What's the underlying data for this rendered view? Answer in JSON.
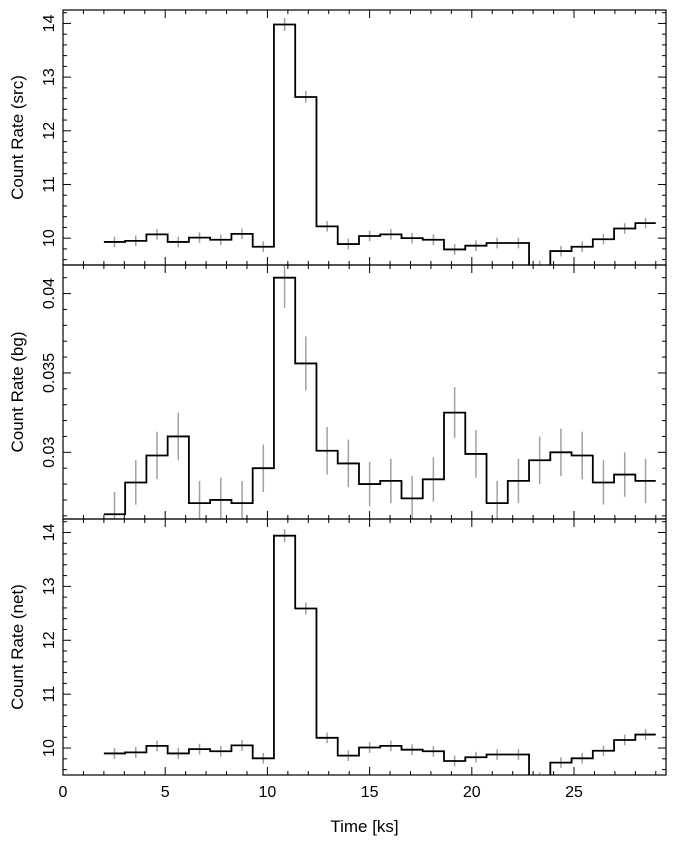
{
  "chart_data": {
    "type": "line",
    "style": "step-with-errorbars",
    "colors": {
      "step": "#000000",
      "errorbar": "#a0a0a0",
      "frame": "#000000"
    },
    "grid": false,
    "shared_x": {
      "xlabel": "Time [ks]",
      "xlim": [
        0,
        29.5
      ],
      "ticks": [
        0,
        5,
        10,
        15,
        20,
        25
      ],
      "bin_edges": [
        2.0,
        3.04,
        4.08,
        5.12,
        6.16,
        7.2,
        8.24,
        9.28,
        10.32,
        11.36,
        12.4,
        13.44,
        14.48,
        15.52,
        16.56,
        17.6,
        18.64,
        19.68,
        20.72,
        21.76,
        22.8,
        23.84,
        24.88,
        25.92,
        26.96,
        28.0,
        29.0
      ]
    },
    "panels": [
      {
        "id": "src",
        "ylabel": "Count Rate (src)",
        "ylim": [
          9.5,
          14.25
        ],
        "yticks": [
          10,
          11,
          12,
          13,
          14
        ],
        "ytick_labels": [
          "10",
          "11",
          "12",
          "13",
          "14"
        ],
        "values": [
          9.93,
          9.95,
          10.07,
          9.93,
          10.01,
          9.97,
          10.08,
          9.84,
          13.98,
          12.63,
          10.22,
          9.89,
          10.04,
          10.07,
          10.0,
          9.97,
          9.79,
          9.86,
          9.91,
          9.91,
          9.48,
          9.76,
          9.84,
          9.98,
          10.18,
          10.28
        ],
        "errors": [
          0.1,
          0.1,
          0.1,
          0.1,
          0.1,
          0.1,
          0.1,
          0.1,
          0.12,
          0.11,
          0.1,
          0.1,
          0.1,
          0.1,
          0.1,
          0.1,
          0.1,
          0.1,
          0.1,
          0.1,
          0.1,
          0.1,
          0.1,
          0.1,
          0.1,
          0.1
        ]
      },
      {
        "id": "bg",
        "ylabel": "Count Rate (bg)",
        "ylim": [
          0.0258,
          0.0418
        ],
        "yticks": [
          0.03,
          0.035,
          0.04
        ],
        "ytick_labels": [
          "0.03",
          "0.035",
          "0.04"
        ],
        "values": [
          0.0261,
          0.0281,
          0.0298,
          0.031,
          0.0268,
          0.027,
          0.0268,
          0.029,
          0.041,
          0.0356,
          0.0301,
          0.0293,
          0.028,
          0.0282,
          0.0271,
          0.0283,
          0.0325,
          0.0299,
          0.0268,
          0.0282,
          0.0295,
          0.03,
          0.0298,
          0.0281,
          0.0286,
          0.0282
        ],
        "errors": [
          0.0014,
          0.0014,
          0.0015,
          0.0015,
          0.0014,
          0.0014,
          0.0014,
          0.0015,
          0.0019,
          0.0017,
          0.0015,
          0.0015,
          0.0014,
          0.0014,
          0.0014,
          0.0014,
          0.0016,
          0.0015,
          0.0014,
          0.0014,
          0.0015,
          0.0015,
          0.0015,
          0.0014,
          0.0014,
          0.0014
        ]
      },
      {
        "id": "net",
        "ylabel": "Count Rate (net)",
        "ylim": [
          9.5,
          14.25
        ],
        "yticks": [
          10,
          11,
          12,
          13,
          14
        ],
        "ytick_labels": [
          "10",
          "11",
          "12",
          "13",
          "14"
        ],
        "values": [
          9.9,
          9.92,
          10.04,
          9.9,
          9.98,
          9.94,
          10.05,
          9.81,
          13.94,
          12.59,
          10.19,
          9.86,
          10.01,
          10.04,
          9.97,
          9.94,
          9.76,
          9.83,
          9.88,
          9.88,
          9.45,
          9.73,
          9.81,
          9.95,
          10.15,
          10.25
        ],
        "errors": [
          0.1,
          0.1,
          0.1,
          0.1,
          0.1,
          0.1,
          0.1,
          0.1,
          0.12,
          0.11,
          0.1,
          0.1,
          0.1,
          0.1,
          0.1,
          0.1,
          0.1,
          0.1,
          0.1,
          0.1,
          0.1,
          0.1,
          0.1,
          0.1,
          0.1,
          0.1
        ]
      }
    ]
  }
}
